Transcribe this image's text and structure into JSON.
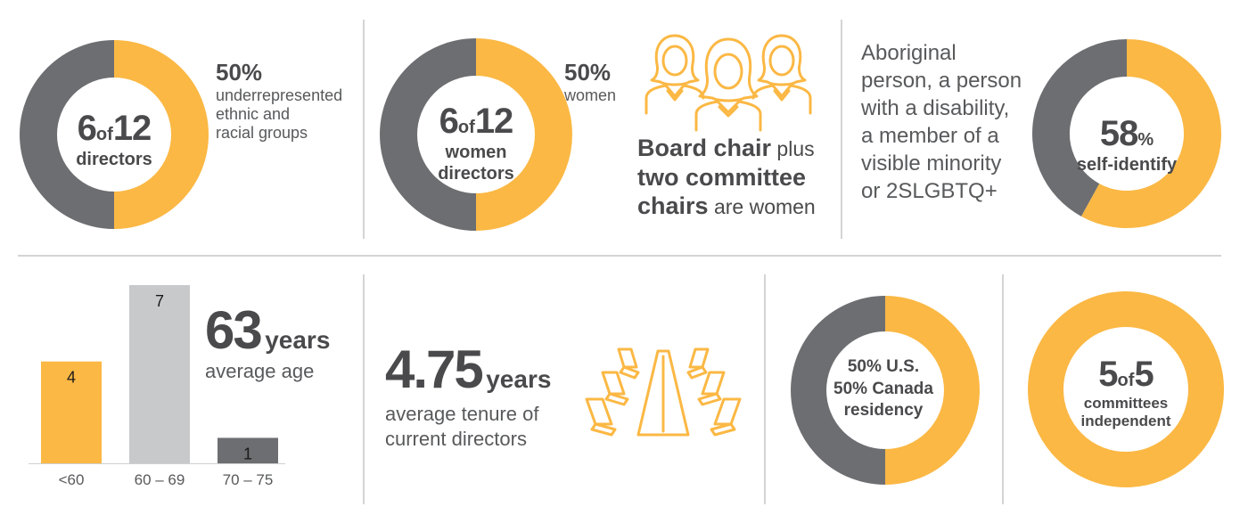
{
  "colors": {
    "gold": "#fbb844",
    "gray": "#6d6e71",
    "light": "#c8c9cb",
    "text": "#4a4a4c"
  },
  "directors_diversity": {
    "big1": "6",
    "of": "of",
    "big2": "12",
    "label": "directors",
    "pct": "50%",
    "desc_lines": [
      "underrepresented",
      "ethnic and",
      "racial groups"
    ]
  },
  "women": {
    "big1": "6",
    "of": "of",
    "big2": "12",
    "label_lines": [
      "women",
      "directors"
    ],
    "pct": "50%",
    "pct_label": "women",
    "board_chair_bold": "Board chair",
    "board_chair_plus": " plus",
    "two_committee": "two committee",
    "chairs": "chairs",
    "are_women": " are women"
  },
  "self_identify": {
    "para_lines": [
      "Aboriginal",
      "person, a person",
      "with a disability,",
      "a member of a",
      "visible minority",
      "or 2SLGBTQ+"
    ],
    "pct_num": "58",
    "pct_sym": "%",
    "label": "self-identify"
  },
  "age": {
    "big": "63",
    "unit": "years",
    "desc": "average age"
  },
  "tenure": {
    "big": "4.75",
    "unit": "years",
    "desc_lines": [
      "average tenure of",
      "current directors"
    ]
  },
  "residency": {
    "us_pct": "50",
    "us_lbl": "% U.S.",
    "ca_pct": "50",
    "ca_lbl": "% Canada",
    "label": "residency"
  },
  "committees": {
    "big1": "5",
    "of": "of",
    "big2": "5",
    "label_lines": [
      "committees",
      "independent"
    ]
  },
  "chart_data": [
    {
      "type": "pie",
      "categories": [
        "underrepresented ethnic and racial groups",
        "other"
      ],
      "values": [
        6,
        6
      ]
    },
    {
      "type": "pie",
      "categories": [
        "women",
        "other"
      ],
      "values": [
        6,
        6
      ]
    },
    {
      "type": "pie",
      "categories": [
        "self-identify",
        "other"
      ],
      "values": [
        58,
        42
      ]
    },
    {
      "type": "bar",
      "categories": [
        "<60",
        "60 – 69",
        "70 – 75"
      ],
      "values": [
        4,
        7,
        1
      ],
      "ylim": [
        0,
        7
      ]
    },
    {
      "type": "pie",
      "categories": [
        "Canada",
        "U.S."
      ],
      "values": [
        50,
        50
      ]
    },
    {
      "type": "pie",
      "categories": [
        "independent"
      ],
      "values": [
        5
      ]
    }
  ]
}
